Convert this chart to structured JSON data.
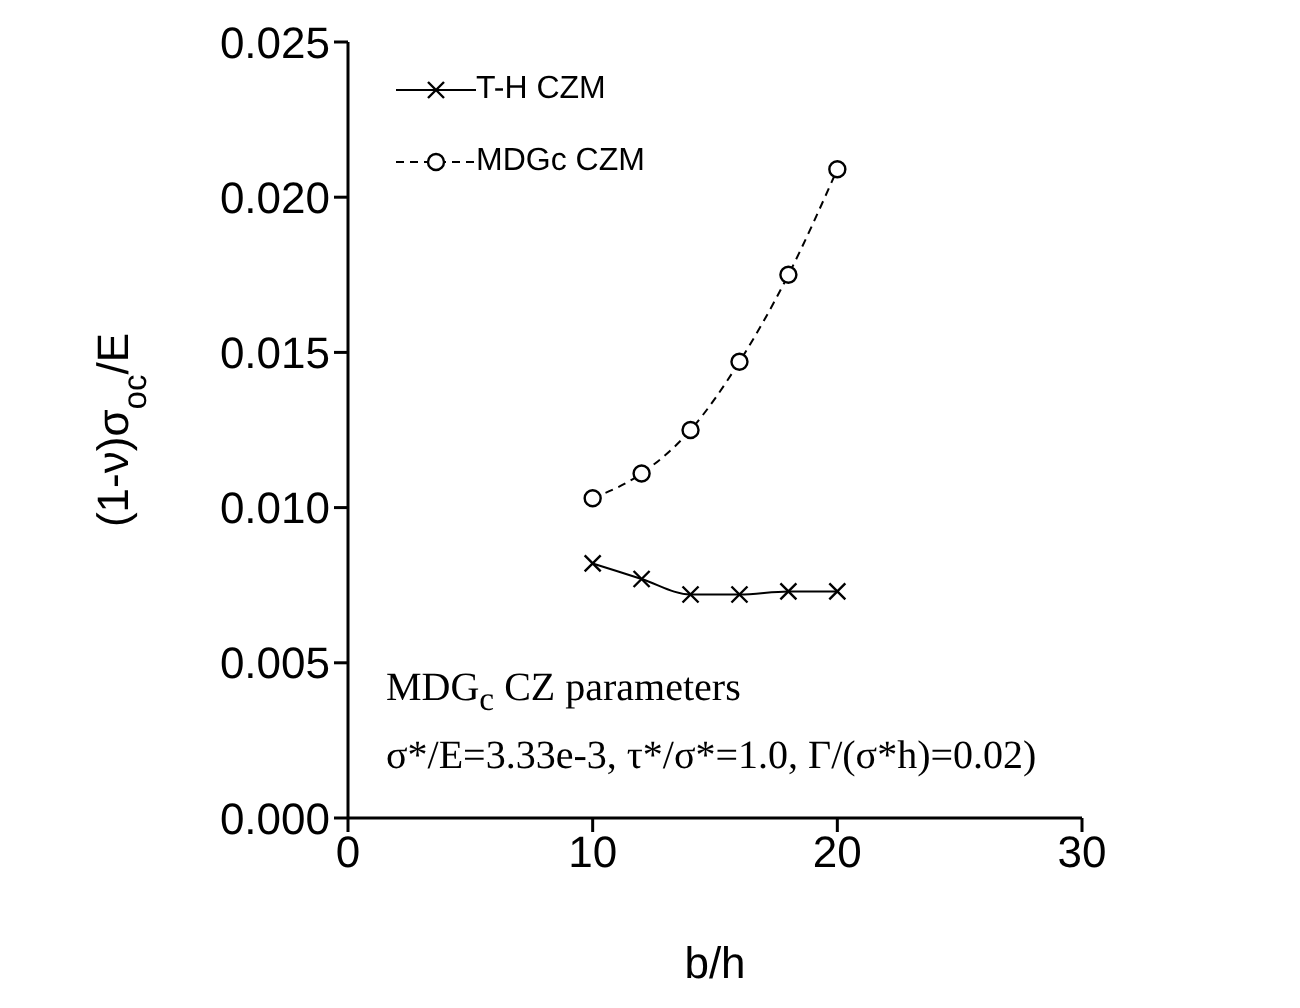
{
  "chart_data": {
    "type": "line",
    "xlabel": "b/h",
    "ylabel": "(1-ν)σ$_{oc}$/E",
    "x": [
      10,
      12,
      14,
      16,
      18,
      20
    ],
    "series": [
      {
        "name": "T-H CZM",
        "color": "#000000",
        "marker": "cross",
        "line_style": "solid",
        "values": [
          0.0082,
          0.0077,
          0.0072,
          0.0072,
          0.0073,
          0.0073
        ]
      },
      {
        "name": "MDGc CZM",
        "color": "#000000",
        "marker": "circle",
        "line_style": "dashed",
        "values": [
          0.0103,
          0.0111,
          0.0125,
          0.0147,
          0.0175,
          0.0209
        ]
      }
    ],
    "xlim": [
      0,
      30
    ],
    "xticks": [
      0,
      10,
      20,
      30
    ],
    "ylim": [
      0,
      0.025
    ],
    "yticks": [
      {
        "value": 0,
        "label": "0.000"
      },
      {
        "value": 0.005,
        "label": "0.005"
      },
      {
        "value": 0.01,
        "label": "0.010"
      },
      {
        "value": 0.015,
        "label": "0.015"
      },
      {
        "value": 0.02,
        "label": "0.020"
      },
      {
        "value": 0.025,
        "label": "0.025"
      }
    ],
    "grid": false,
    "legend": "top left",
    "annotations": [
      "MDG$_{c}$ CZ parameters",
      "σ*/E=3.33e-3, τ*/σ*=1.0, Γ/(σ*h)=0.02)"
    ]
  }
}
